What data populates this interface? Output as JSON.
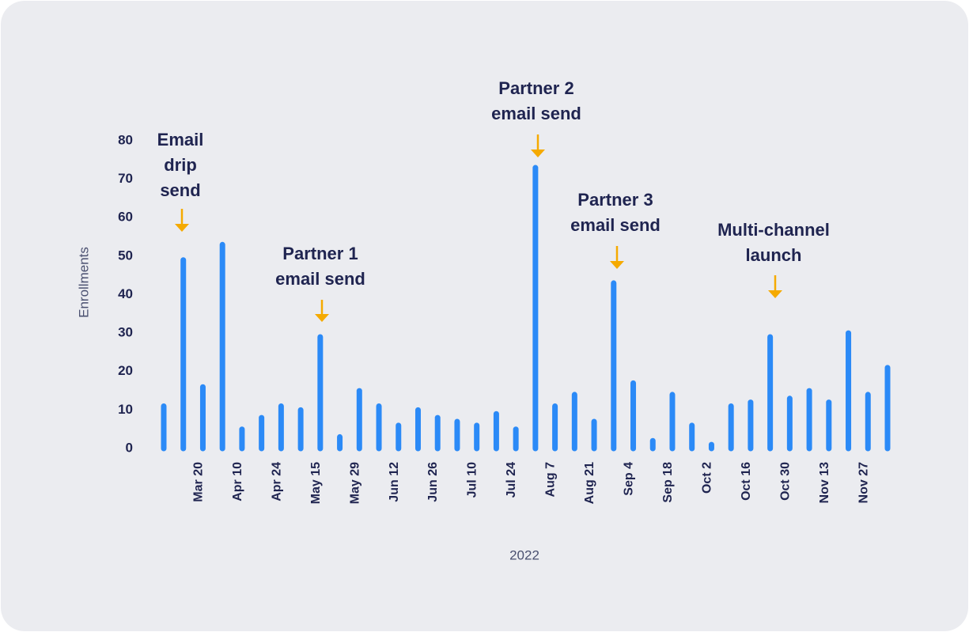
{
  "chart_data": {
    "type": "bar",
    "categories": [
      null,
      null,
      "Mar 20",
      null,
      "Apr 10",
      null,
      "Apr 24",
      null,
      "May 15",
      null,
      "May 29",
      null,
      "Jun 12",
      null,
      "Jun 26",
      null,
      "Jul 10",
      null,
      "Jul 24",
      null,
      "Aug 7",
      null,
      "Aug 21",
      null,
      "Sep 4",
      null,
      "Sep 18",
      null,
      "Oct 2",
      null,
      "Oct 16",
      null,
      "Oct 30",
      null,
      "Nov 13",
      null,
      "Nov 27",
      null
    ],
    "values": [
      11,
      49,
      16,
      53,
      5,
      8,
      11,
      10,
      29,
      3,
      15,
      11,
      6,
      10,
      8,
      7,
      6,
      9,
      5,
      73,
      11,
      14,
      7,
      43,
      17,
      2,
      14,
      6,
      1,
      11,
      12,
      29,
      13,
      15,
      12,
      30,
      14,
      21
    ],
    "color": "#2b8af7",
    "ylim": [
      0,
      80
    ],
    "yticks": [
      0,
      10,
      20,
      30,
      40,
      50,
      60,
      70,
      80
    ],
    "y_label": "Enrollments",
    "x_label": "2022",
    "annotations": [
      {
        "lines": [
          "Email",
          "drip",
          "send"
        ],
        "color": "#f5aa00"
      },
      {
        "lines": [
          "Partner 1",
          "email send"
        ],
        "color": "#f5aa00"
      },
      {
        "lines": [
          "Partner 2",
          "email send"
        ],
        "color": "#f5aa00"
      },
      {
        "lines": [
          "Partner 3",
          "email send"
        ],
        "color": "#f5aa00"
      },
      {
        "lines": [
          "Multi-channel",
          "launch"
        ],
        "color": "#f5aa00"
      }
    ]
  }
}
